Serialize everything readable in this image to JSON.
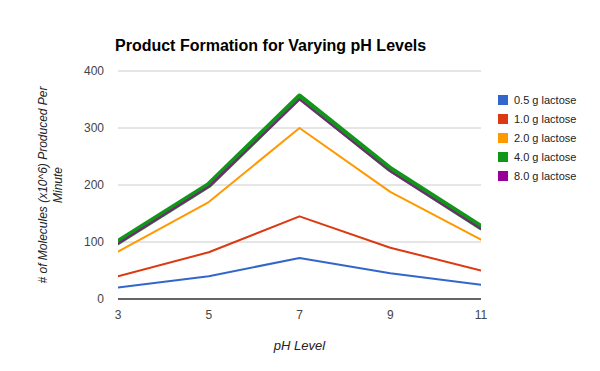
{
  "chart_data": {
    "type": "line",
    "title": "Product Formation for Varying pH Levels",
    "x_label": "pH Level",
    "y_label": "# of Molecules (x10^6) Produced Per Minute",
    "x": [
      3,
      5,
      7,
      9,
      11
    ],
    "xlim": [
      3,
      11
    ],
    "xticks": [
      3,
      5,
      7,
      9,
      11
    ],
    "ylim": [
      0,
      400
    ],
    "yticks": [
      0,
      100,
      200,
      300,
      400
    ],
    "grid": true,
    "legend": "right",
    "series": [
      {
        "name": "0.5 g lactose",
        "color": "#3366cc",
        "values": [
          20,
          40,
          72,
          45,
          25
        ]
      },
      {
        "name": "1.0 g lactose",
        "color": "#dc3912",
        "values": [
          40,
          82,
          145,
          90,
          50
        ]
      },
      {
        "name": "2.0 g lactose",
        "color": "#ff9900",
        "values": [
          83,
          170,
          300,
          188,
          104
        ]
      },
      {
        "name": "4.0 g lactose",
        "color": "#109618",
        "values": [
          100,
          200,
          355,
          228,
          126
        ]
      },
      {
        "name": "8.0 g lactose",
        "color": "#990099",
        "values": [
          97,
          197,
          350,
          224,
          123
        ]
      }
    ]
  }
}
